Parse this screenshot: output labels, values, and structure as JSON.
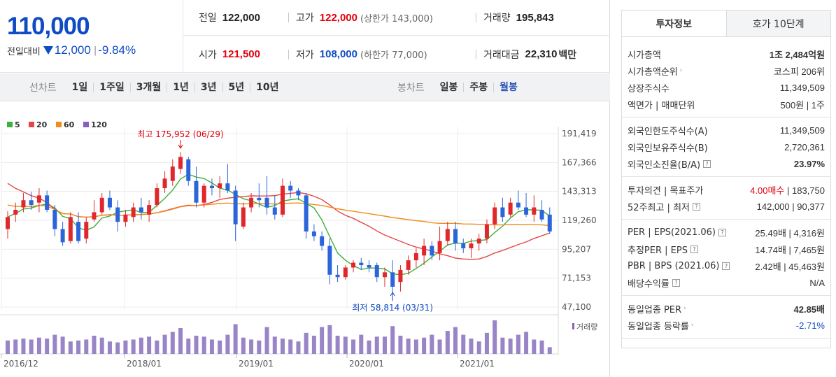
{
  "price": {
    "current": "110,000",
    "change_label": "전일대비",
    "change_value": "12,000",
    "change_pct": "-9.84%",
    "color_down": "#0f4bc4",
    "color_up": "#e3000f"
  },
  "stats": {
    "prev_label": "전일",
    "prev_value": "122,000",
    "high_label": "고가",
    "high_value": "122,000",
    "high_limit": "(상한가 143,000)",
    "volume_label": "거래량",
    "volume_value": "195,843",
    "open_label": "시가",
    "open_value": "121,500",
    "low_label": "저가",
    "low_value": "108,000",
    "low_limit": "(하한가 77,000)",
    "amount_label": "거래대금",
    "amount_value": "22,310",
    "amount_unit": "백만"
  },
  "toolbar": {
    "line_title": "선차트",
    "line_periods": [
      "1일",
      "1주일",
      "3개월",
      "1년",
      "3년",
      "5년",
      "10년"
    ],
    "candle_title": "봉차트",
    "candle_periods": [
      "일봉",
      "주봉",
      "월봉"
    ],
    "active_candle": "월봉"
  },
  "chart_data": {
    "type": "candlestick",
    "legend": [
      "5",
      "20",
      "60",
      "120"
    ],
    "legend_colors": [
      "#3cb039",
      "#e64545",
      "#f08c1e",
      "#8b5fbf"
    ],
    "y_ticks": [
      "191,419",
      "167,366",
      "143,313",
      "119,260",
      "95,207",
      "71,153",
      "47,100"
    ],
    "ylim": [
      47100,
      191419
    ],
    "x_ticks": [
      "2016/12",
      "2018/01",
      "2019/01",
      "2020/01",
      "2021/01"
    ],
    "high_annotation": "최고 175,952 (06/29)",
    "low_annotation": "최저 58,814 (03/31)",
    "volume_label": "거래량",
    "candles": [
      [
        112000,
        127000,
        104000,
        122000
      ],
      [
        124000,
        134000,
        118000,
        128000
      ],
      [
        130000,
        142000,
        126000,
        136000
      ],
      [
        136000,
        143000,
        128000,
        132000
      ],
      [
        134000,
        146000,
        126000,
        140000
      ],
      [
        140000,
        144000,
        126000,
        128000
      ],
      [
        128000,
        132000,
        106000,
        112000
      ],
      [
        112000,
        118000,
        98000,
        101000
      ],
      [
        102000,
        126000,
        100000,
        122000
      ],
      [
        118000,
        126000,
        100000,
        102000
      ],
      [
        104000,
        122000,
        100000,
        118000
      ],
      [
        120000,
        136000,
        118000,
        126000
      ],
      [
        126000,
        142000,
        124000,
        138000
      ],
      [
        138000,
        144000,
        128000,
        130000
      ],
      [
        130000,
        136000,
        110000,
        118000
      ],
      [
        118000,
        128000,
        114000,
        124000
      ],
      [
        122000,
        134000,
        118000,
        130000
      ],
      [
        130000,
        138000,
        120000,
        126000
      ],
      [
        124000,
        136000,
        118000,
        132000
      ],
      [
        132000,
        150000,
        130000,
        146000
      ],
      [
        146000,
        160000,
        142000,
        154000
      ],
      [
        152000,
        170000,
        148000,
        164000
      ],
      [
        162000,
        176000,
        158000,
        172000
      ],
      [
        170000,
        172000,
        148000,
        152000
      ],
      [
        152000,
        164000,
        130000,
        134000
      ],
      [
        134000,
        150000,
        130000,
        148000
      ],
      [
        148000,
        154000,
        140000,
        146000
      ],
      [
        146000,
        156000,
        138000,
        150000
      ],
      [
        150000,
        166000,
        142000,
        144000
      ],
      [
        144000,
        148000,
        102000,
        116000
      ],
      [
        114000,
        134000,
        112000,
        130000
      ],
      [
        130000,
        142000,
        126000,
        138000
      ],
      [
        138000,
        150000,
        130000,
        136000
      ],
      [
        138000,
        156000,
        124000,
        130000
      ],
      [
        130000,
        140000,
        120000,
        124000
      ],
      [
        124000,
        154000,
        122000,
        148000
      ],
      [
        148000,
        152000,
        138000,
        144000
      ],
      [
        144000,
        146000,
        136000,
        140000
      ],
      [
        140000,
        142000,
        104000,
        110000
      ],
      [
        110000,
        116000,
        102000,
        106000
      ],
      [
        106000,
        110000,
        94000,
        98000
      ],
      [
        98000,
        104000,
        66000,
        74000
      ],
      [
        74000,
        82000,
        68000,
        72000
      ],
      [
        72000,
        82000,
        70000,
        80000
      ],
      [
        80000,
        86000,
        76000,
        84000
      ],
      [
        84000,
        88000,
        78000,
        82000
      ],
      [
        82000,
        86000,
        76000,
        80000
      ],
      [
        82000,
        84000,
        68000,
        72000
      ],
      [
        72000,
        80000,
        64000,
        76000
      ],
      [
        76000,
        86000,
        58814,
        64000
      ],
      [
        68000,
        82000,
        60000,
        78000
      ],
      [
        78000,
        90000,
        74000,
        86000
      ],
      [
        86000,
        96000,
        80000,
        92000
      ],
      [
        90000,
        104000,
        82000,
        98000
      ],
      [
        98000,
        102000,
        86000,
        90000
      ],
      [
        92000,
        114000,
        86000,
        102000
      ],
      [
        102000,
        118000,
        98000,
        112000
      ],
      [
        112000,
        118000,
        94000,
        100000
      ],
      [
        100000,
        104000,
        92000,
        96000
      ],
      [
        96000,
        104000,
        88000,
        100000
      ],
      [
        100000,
        108000,
        94000,
        104000
      ],
      [
        104000,
        120000,
        100000,
        116000
      ],
      [
        116000,
        134000,
        112000,
        130000
      ],
      [
        130000,
        138000,
        118000,
        122000
      ],
      [
        124000,
        138000,
        122000,
        134000
      ],
      [
        134000,
        144000,
        128000,
        130000
      ],
      [
        130000,
        142000,
        122000,
        124000
      ],
      [
        124000,
        140000,
        118000,
        130000
      ],
      [
        128000,
        136000,
        118000,
        120000
      ],
      [
        124000,
        130000,
        108000,
        110000
      ]
    ],
    "volumes": [
      28,
      30,
      32,
      30,
      34,
      32,
      40,
      36,
      26,
      28,
      30,
      38,
      34,
      26,
      24,
      28,
      30,
      34,
      36,
      28,
      40,
      46,
      54,
      32,
      38,
      36,
      30,
      28,
      40,
      62,
      34,
      30,
      28,
      56,
      36,
      32,
      30,
      26,
      44,
      38,
      56,
      60,
      38,
      36,
      30,
      40,
      28,
      36,
      36,
      58,
      38,
      32,
      30,
      34,
      40,
      30,
      48,
      56,
      40,
      32,
      26,
      44,
      70,
      34,
      32,
      40,
      46,
      30,
      28,
      14
    ]
  },
  "invest_panel": {
    "tab_info": "투자정보",
    "tab_quote": "호가 10단계",
    "sections": [
      [
        {
          "label": "시가총액",
          "value": "1조 2,484억원"
        },
        {
          "label": "시가총액순위",
          "value": "코스피 206위"
        },
        {
          "label": "상장주식수",
          "value": "11,349,509"
        },
        {
          "label": "액면가 | 매매단위",
          "value": "500원 | 1주"
        }
      ],
      [
        {
          "label": "외국인한도주식수(A)",
          "value": "11,349,509"
        },
        {
          "label": "외국인보유주식수(B)",
          "value": "2,720,361"
        },
        {
          "label": "외국인소진율(B/A)",
          "value": "23.97%"
        }
      ],
      [
        {
          "label": "투자의견 | 목표주가",
          "value": "4.00매수 | 183,750"
        },
        {
          "label": "52주최고 | 최저",
          "value": "142,000 | 90,377"
        }
      ],
      [
        {
          "label": "PER | EPS(2021.06)",
          "value": "25.49배 | 4,316원"
        },
        {
          "label": "추정PER | EPS",
          "value": "14.74배 | 7,465원"
        },
        {
          "label": "PBR | BPS (2021.06)",
          "value": "2.42배 | 45,463원"
        },
        {
          "label": "배당수익률",
          "value": "N/A"
        }
      ],
      [
        {
          "label": "동일업종 PER",
          "value": "42.85배"
        },
        {
          "label": "동일업종 등락률",
          "value": "-2.71%"
        }
      ]
    ]
  }
}
